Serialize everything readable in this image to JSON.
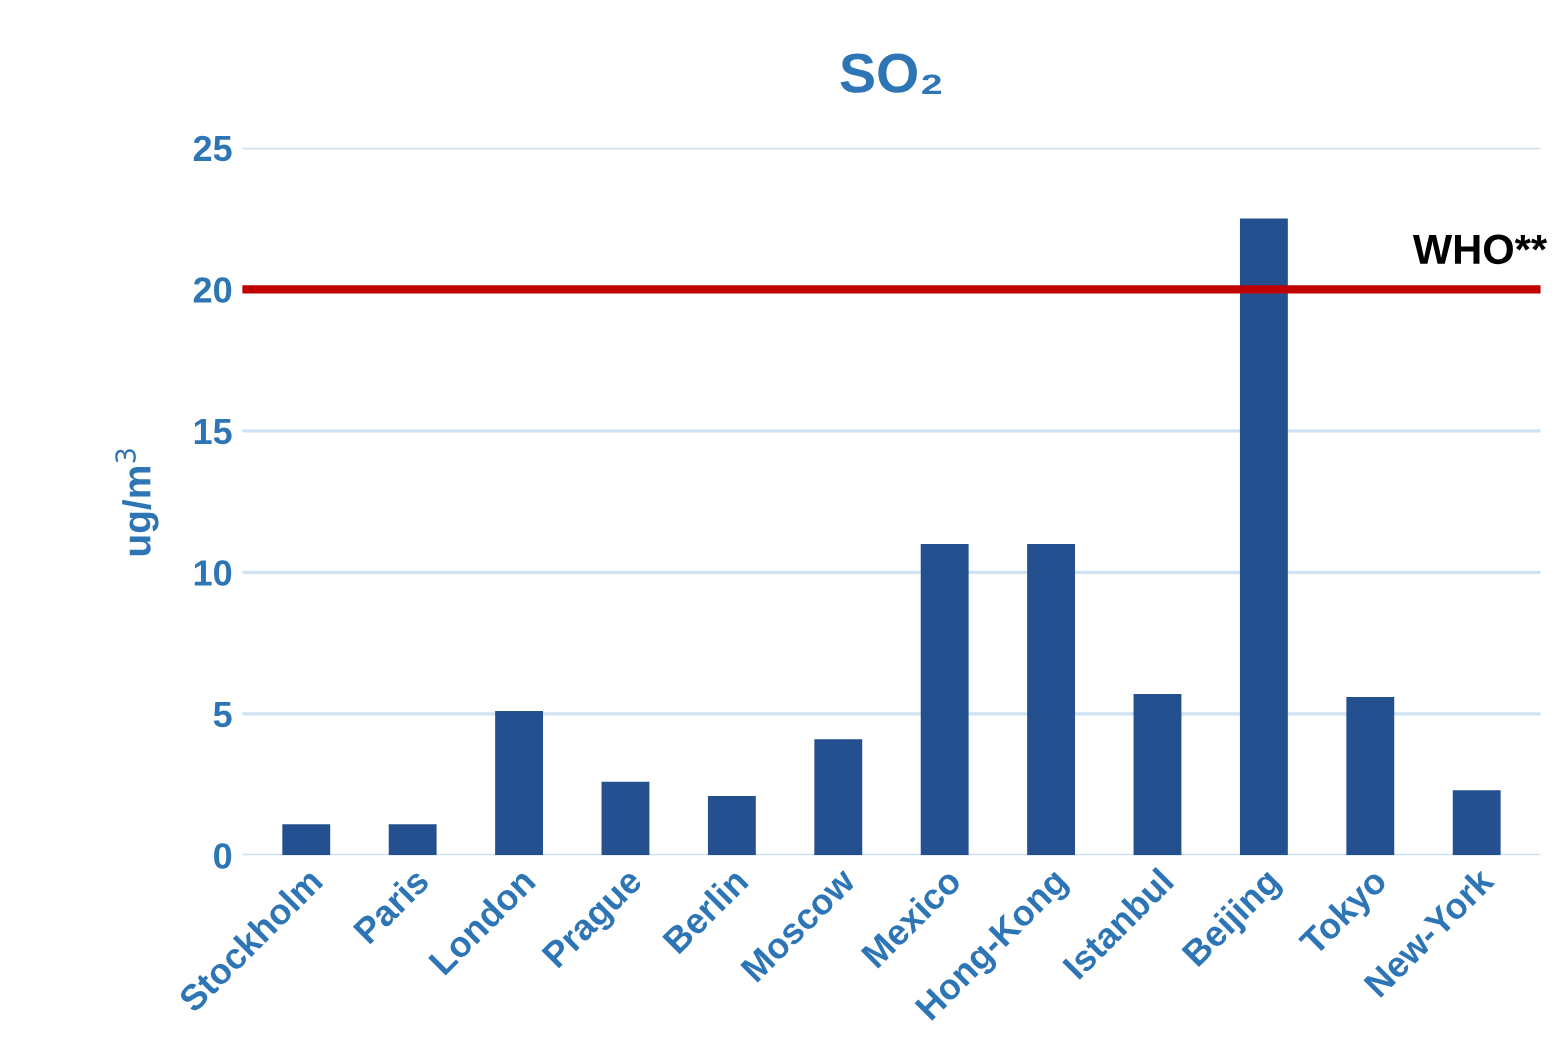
{
  "chart_data": {
    "type": "bar",
    "title": "SO₂",
    "ylabel": "ug/m$^{3}$",
    "categories": [
      "Stockholm",
      "Paris",
      "London",
      "Prague",
      "Berlin",
      "Moscow",
      "Mexico",
      "Hong-Kong",
      "Istanbul",
      "Beijing",
      "Tokyo",
      "New-York"
    ],
    "values": [
      1.1,
      1.1,
      5.1,
      2.6,
      2.1,
      4.1,
      11,
      11,
      5.7,
      22.5,
      5.6,
      2.3
    ],
    "color": "#25508f",
    "ylim": [
      0,
      25
    ],
    "yticks": [
      0,
      5,
      10,
      15,
      20,
      25
    ],
    "grid": "y",
    "ref_lines": [
      {
        "axis": "y",
        "value": 20,
        "label": "WHO**",
        "color": "#c00000"
      }
    ]
  }
}
